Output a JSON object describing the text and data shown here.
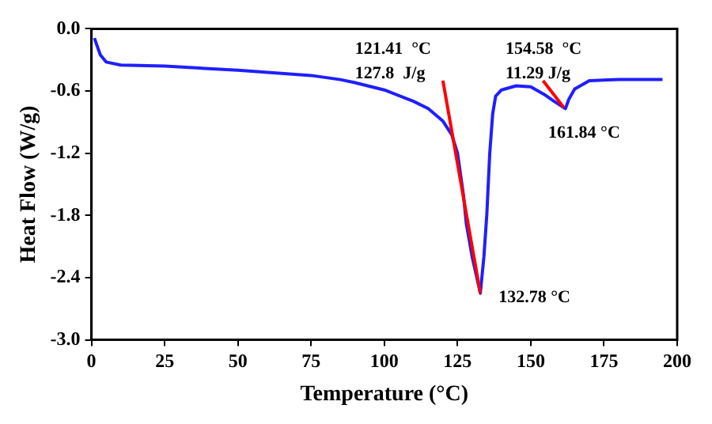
{
  "chart_data": {
    "type": "line",
    "xlabel": "Temperature (°C)",
    "ylabel": "Heat Flow (W/g)",
    "xlim": [
      0,
      200
    ],
    "xticks": [
      0,
      25,
      50,
      75,
      100,
      125,
      150,
      175,
      200
    ],
    "ylim": [
      -3,
      0
    ],
    "yticks": [
      {
        "value": -3,
        "label": "-3.0"
      },
      -2.4,
      -1.8,
      -1.2,
      -0.6,
      {
        "value": 0,
        "label": "0.0"
      }
    ],
    "grid": false,
    "legend": false,
    "marker": "none",
    "line_style": "solid",
    "series": [
      {
        "color": "#1f1fff",
        "x": [
          1,
          3,
          5,
          10,
          25,
          50,
          75,
          85,
          90,
          100,
          110,
          115,
          120,
          123,
          125,
          127,
          128,
          130,
          132.78,
          134,
          135,
          136,
          137,
          138,
          140,
          145,
          150,
          155,
          158,
          161.84,
          163,
          165,
          170,
          180,
          195
        ],
        "values": [
          -0.09,
          -0.25,
          -0.32,
          -0.35,
          -0.36,
          -0.4,
          -0.45,
          -0.49,
          -0.52,
          -0.59,
          -0.7,
          -0.77,
          -0.89,
          -1.02,
          -1.2,
          -1.6,
          -1.88,
          -2.2,
          -2.55,
          -2.2,
          -1.79,
          -1.2,
          -0.82,
          -0.65,
          -0.59,
          -0.55,
          -0.56,
          -0.64,
          -0.7,
          -0.77,
          -0.68,
          -0.58,
          -0.5,
          -0.49,
          -0.49
        ]
      },
      {
        "type": "line",
        "color": "#ff0000",
        "x": [
          120,
          132.78
        ],
        "values": [
          -0.5,
          -2.55
        ]
      },
      {
        "type": "line",
        "color": "#ff0000",
        "x": [
          154.2,
          161.3
        ],
        "values": [
          -0.5,
          -0.76
        ]
      }
    ],
    "annotations": [
      "121.41  °C",
      "127.8  J/g",
      "154.58  °C",
      "11.29 J/g",
      "161.84 °C",
      "132.78 °C"
    ]
  }
}
